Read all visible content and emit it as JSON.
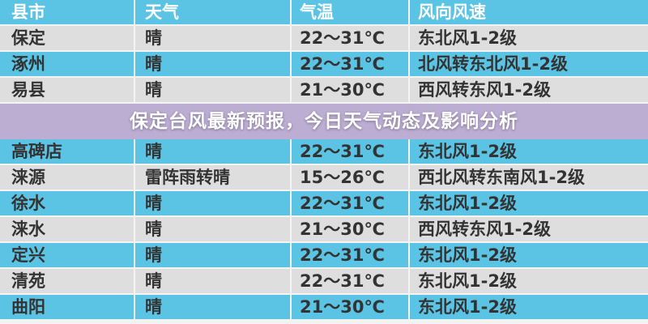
{
  "table": {
    "headers": [
      "县市",
      "天气",
      "气温",
      "风向风速"
    ],
    "rows": [
      [
        "保定",
        "晴",
        "22～31℃",
        "东北风1-2级"
      ],
      [
        "涿州",
        "晴",
        "22～31℃",
        "北风转东北风1-2级"
      ],
      [
        "易县",
        "晴",
        "21～30℃",
        "西风转东风1-2级"
      ],
      [
        "高碑店",
        "晴",
        "22～31℃",
        "东北风1-2级"
      ],
      [
        "涞源",
        "雷阵雨转晴",
        "15～26℃",
        "西北风转东南风1-2级"
      ],
      [
        "徐水",
        "晴",
        "22～31℃",
        "东北风1-2级"
      ],
      [
        "涞水",
        "晴",
        "21～30℃",
        "西风转东风1-2级"
      ],
      [
        "定兴",
        "晴",
        "22～31℃",
        "东北风1-2级"
      ],
      [
        "清苑",
        "晴",
        "22～31℃",
        "东北风1-2级"
      ],
      [
        "曲阳",
        "晴",
        "21～30℃",
        "东北风1-2级"
      ]
    ]
  },
  "overlay": {
    "title": "保定台风最新预报，今日天气动态及影响分析"
  },
  "colors": {
    "header": "#5bc4e5",
    "row_blue": "#5bc4e5",
    "row_gray": "#dedede"
  }
}
